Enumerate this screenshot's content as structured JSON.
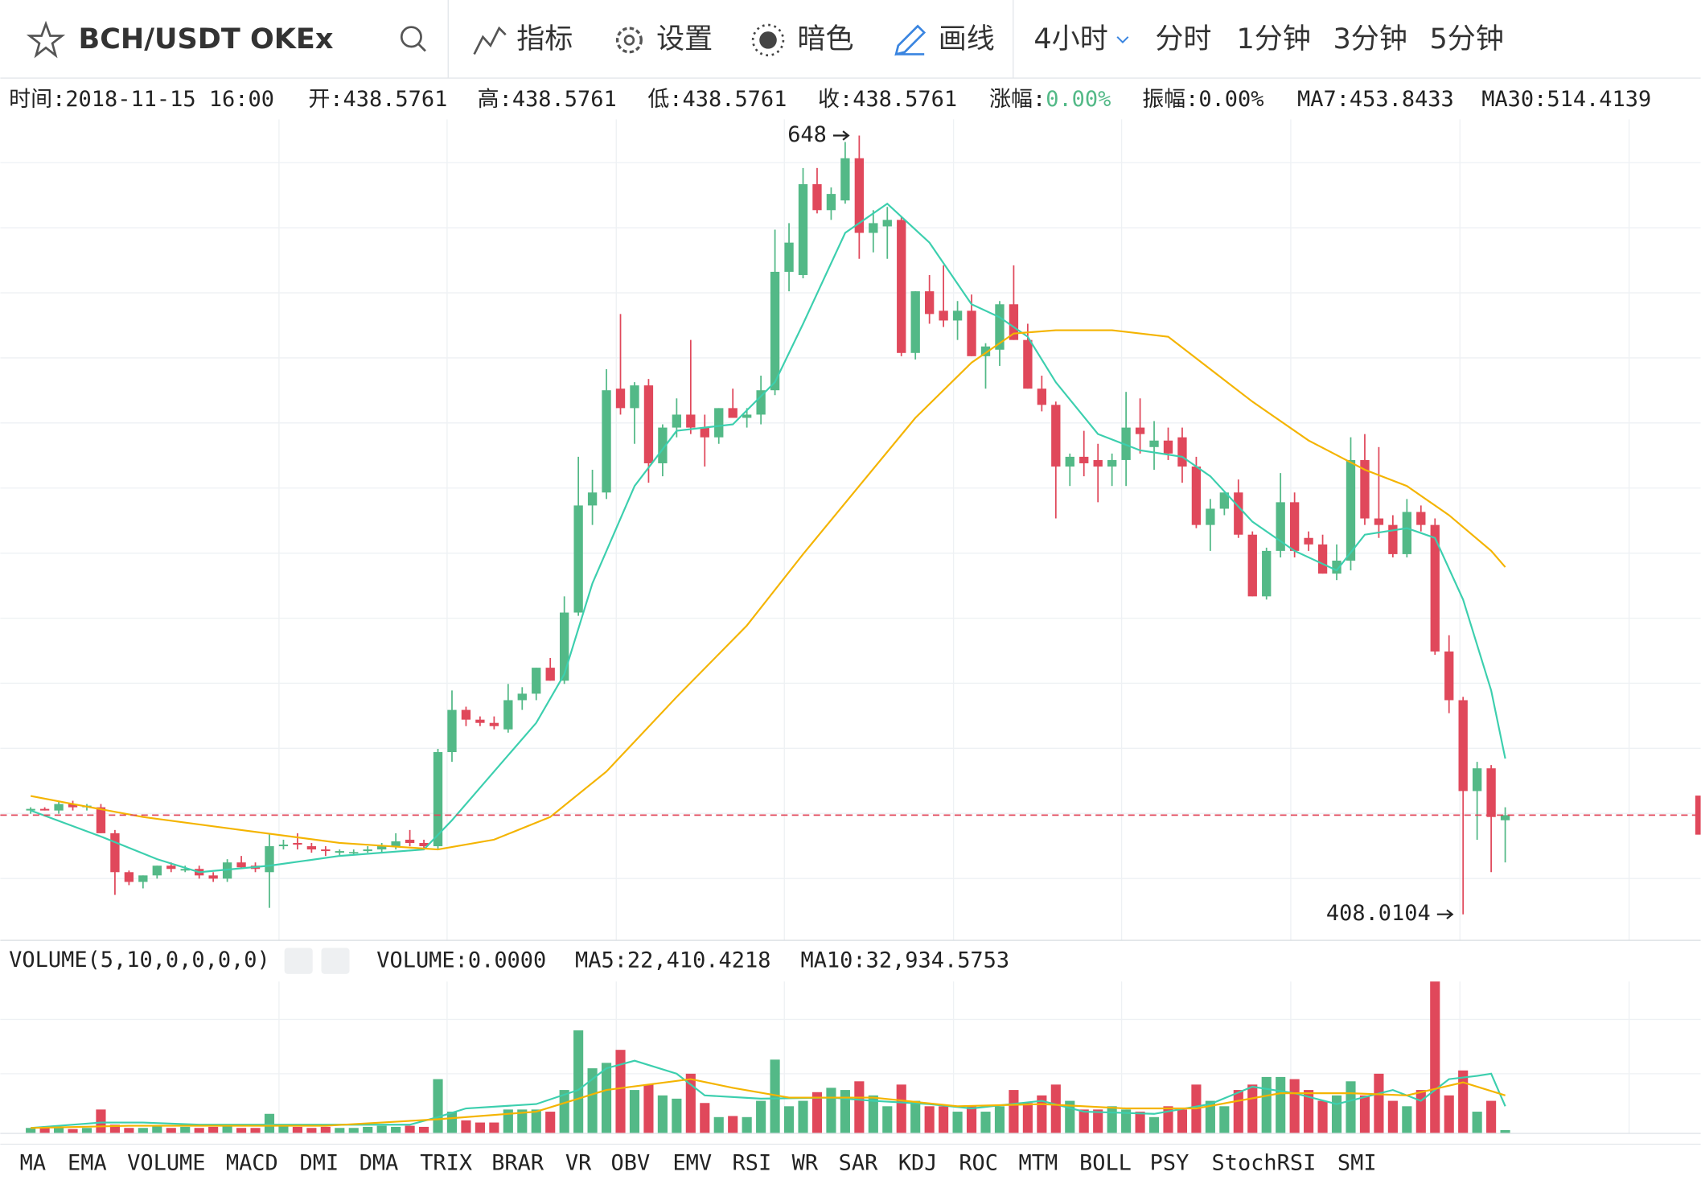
{
  "toolbar": {
    "symbol": "BCH/USDT OKEx",
    "buttons": [
      "指标",
      "设置",
      "暗色",
      "画线"
    ],
    "period": "4小时",
    "periods": [
      "分时",
      "1分钟",
      "3分钟",
      "5分钟"
    ]
  },
  "info": [
    {
      "label": "时间:",
      "value": "2018-11-15 16:00"
    },
    {
      "label": "开:",
      "value": 438.5761
    },
    {
      "label": "高:",
      "value": 438.5761
    },
    {
      "label": "低:",
      "value": 438.5761
    },
    {
      "label": "收:",
      "value": 438.5761
    },
    {
      "label": "涨幅:",
      "value": "0.00%",
      "value_color": "#53b987"
    },
    {
      "label": "振幅:",
      "value": "0.00%"
    },
    {
      "label": "MA7:",
      "value": 453.8433,
      "color": "#3ccfae"
    },
    {
      "label": "MA30:",
      "value": 514.4139,
      "color": "#f4b400"
    }
  ],
  "chart_data": [
    {
      "type": "candlestick",
      "up_color": "#53b987",
      "down_color": "#e0485b",
      "ylim": [
        400,
        653
      ],
      "ohlc": [
        [
          440,
          441,
          439,
          440.5
        ],
        [
          440.5,
          441,
          440,
          440
        ],
        [
          440,
          443,
          439,
          442
        ],
        [
          442,
          443,
          440,
          441
        ],
        [
          441,
          442,
          440,
          441.5
        ],
        [
          441,
          442,
          433,
          433
        ],
        [
          433,
          434,
          414,
          421
        ],
        [
          421,
          421.5,
          417,
          418
        ],
        [
          418,
          420,
          416,
          420
        ],
        [
          420,
          423,
          419,
          423
        ],
        [
          423,
          424,
          421,
          422
        ],
        [
          421.5,
          423,
          421,
          422
        ],
        [
          422,
          423,
          419,
          420
        ],
        [
          420,
          421,
          418,
          419
        ],
        [
          419,
          425,
          418,
          424
        ],
        [
          424,
          426,
          422,
          422.5
        ],
        [
          423,
          424,
          421,
          422
        ],
        [
          421,
          433,
          410,
          429
        ],
        [
          429,
          431,
          428,
          429.5
        ],
        [
          430,
          433,
          428,
          429.5
        ],
        [
          429,
          430,
          427,
          428
        ],
        [
          428,
          429,
          426,
          427.5
        ],
        [
          427,
          428,
          426,
          427.5
        ],
        [
          427,
          428,
          426.5,
          427.2
        ],
        [
          427.5,
          429,
          427,
          428
        ],
        [
          428,
          430,
          427,
          429
        ],
        [
          429,
          433,
          428,
          430.5
        ],
        [
          431,
          434,
          429,
          430
        ],
        [
          430,
          431,
          428,
          429
        ],
        [
          429,
          459,
          428,
          458
        ],
        [
          458,
          477,
          455,
          471
        ],
        [
          471,
          472,
          466,
          468
        ],
        [
          468,
          469,
          466,
          467
        ],
        [
          467,
          469,
          465,
          466
        ],
        [
          465,
          479,
          464,
          474
        ],
        [
          474,
          478,
          471,
          476
        ],
        [
          476,
          484,
          474,
          484
        ],
        [
          484,
          487,
          480,
          480
        ],
        [
          480,
          506,
          479,
          501
        ],
        [
          501,
          549,
          500,
          534
        ],
        [
          534,
          545,
          528,
          538
        ],
        [
          538,
          576,
          536,
          569.5
        ],
        [
          570,
          593,
          562,
          564
        ],
        [
          564,
          572,
          553,
          571
        ],
        [
          571,
          573,
          541,
          547
        ],
        [
          547,
          559,
          543,
          558
        ],
        [
          558,
          567,
          555,
          562
        ],
        [
          562,
          585,
          556,
          558
        ],
        [
          558,
          562,
          546,
          555
        ],
        [
          555,
          564,
          553,
          564
        ],
        [
          564,
          570,
          561,
          561
        ],
        [
          561,
          564,
          558,
          562
        ],
        [
          562,
          574,
          559,
          569.5
        ],
        [
          569.5,
          619,
          568,
          606
        ],
        [
          606,
          621,
          600,
          615
        ],
        [
          605,
          638,
          604,
          633
        ],
        [
          633,
          638,
          624,
          625
        ],
        [
          625,
          632,
          622,
          630
        ],
        [
          628,
          646,
          627,
          641
        ],
        [
          641,
          648,
          610,
          618
        ],
        [
          618,
          625,
          612,
          621
        ],
        [
          620,
          626,
          610,
          622
        ],
        [
          622,
          623,
          580,
          581
        ],
        [
          581,
          600,
          579,
          600
        ],
        [
          600,
          605,
          590,
          593
        ],
        [
          594,
          608,
          589,
          591
        ],
        [
          591,
          597,
          585,
          594
        ],
        [
          594,
          599,
          580,
          580
        ],
        [
          580,
          584,
          570,
          583
        ],
        [
          582,
          597,
          577,
          596
        ],
        [
          596,
          608,
          585,
          585
        ],
        [
          585,
          590,
          570,
          570
        ],
        [
          570,
          574,
          563,
          565
        ],
        [
          565,
          566,
          530,
          546
        ],
        [
          546,
          550,
          540,
          549
        ],
        [
          549,
          557,
          543,
          547
        ],
        [
          548,
          553,
          535,
          546
        ],
        [
          546,
          550,
          540,
          548
        ],
        [
          548,
          569,
          540,
          558
        ],
        [
          558,
          567,
          550,
          556
        ],
        [
          552,
          560,
          545,
          554
        ],
        [
          554,
          558,
          548,
          550
        ],
        [
          555,
          558,
          541,
          546
        ],
        [
          546,
          549,
          527,
          528
        ],
        [
          528,
          536,
          520,
          533
        ],
        [
          533,
          538,
          531,
          538
        ],
        [
          538,
          542,
          524,
          525
        ],
        [
          525,
          526,
          506,
          506
        ],
        [
          506,
          521,
          505,
          520
        ],
        [
          520,
          544,
          518,
          535
        ],
        [
          535,
          538,
          518,
          520
        ],
        [
          524,
          526,
          520,
          522
        ],
        [
          522,
          525,
          513,
          513
        ],
        [
          513,
          522,
          511,
          517
        ],
        [
          517,
          555,
          514,
          548
        ],
        [
          548,
          556,
          528,
          530
        ],
        [
          530,
          552,
          524,
          528
        ],
        [
          528,
          531,
          518,
          519
        ],
        [
          519,
          536,
          518,
          532
        ],
        [
          532,
          534,
          526,
          528
        ],
        [
          528,
          530,
          488,
          489
        ],
        [
          489,
          494,
          470,
          474
        ],
        [
          474,
          475,
          408.0104,
          446
        ],
        [
          446,
          455,
          431,
          453
        ],
        [
          453,
          454,
          421,
          438
        ],
        [
          437,
          441,
          424,
          438.5761
        ]
      ],
      "ma": [
        {
          "color": "#3ccfae",
          "x": [
            0,
            5,
            9,
            12,
            17,
            22,
            28,
            30,
            33,
            36,
            38,
            40,
            43,
            46,
            50,
            53,
            55,
            58,
            61,
            64,
            67,
            69,
            71,
            73,
            76,
            79,
            82,
            84,
            87,
            90,
            93,
            95,
            98,
            100,
            102,
            104,
            105
          ],
          "values": [
            440,
            432,
            425,
            421,
            423,
            426,
            428,
            437,
            452,
            467,
            482,
            510,
            540,
            557,
            559,
            572,
            590,
            618,
            627,
            615,
            596,
            592,
            586,
            572,
            556,
            551,
            549,
            543,
            529,
            520,
            514,
            525,
            527,
            524,
            505,
            477,
            456
          ]
        },
        {
          "color": "#f4b400",
          "x": [
            0,
            3,
            8,
            15,
            22,
            29,
            33,
            37,
            41,
            46,
            51,
            55,
            59,
            63,
            67,
            70,
            73,
            77,
            81,
            84,
            87,
            91,
            95,
            98,
            101,
            104,
            105
          ],
          "values": [
            444.5,
            442,
            438,
            434,
            430,
            428,
            431,
            438,
            452,
            475,
            497,
            519,
            540,
            561,
            578,
            587,
            588,
            588,
            586,
            576,
            566,
            554,
            545,
            540,
            531,
            520,
            515
          ]
        }
      ]
    },
    {
      "type": "bar",
      "ylim": [
        0,
        130500
      ],
      "values": [
        4500,
        4500,
        4500,
        3600,
        4500,
        19800,
        7200,
        4500,
        4500,
        6300,
        4500,
        5400,
        4500,
        5400,
        6300,
        4500,
        4500,
        16200,
        7200,
        5400,
        4500,
        5400,
        4500,
        4500,
        5400,
        6300,
        5400,
        6300,
        5400,
        45000,
        18000,
        10800,
        9000,
        9000,
        19800,
        19800,
        19800,
        18000,
        36000,
        85500,
        54000,
        58500,
        69300,
        36000,
        40500,
        31500,
        28800,
        49500,
        25200,
        13500,
        14400,
        13500,
        27000,
        61200,
        22500,
        27000,
        34200,
        37800,
        36000,
        43200,
        31500,
        22500,
        40500,
        27000,
        22500,
        22500,
        18000,
        22500,
        18000,
        22500,
        36000,
        25200,
        31500,
        40500,
        27000,
        19800,
        19800,
        22500,
        19800,
        18000,
        13500,
        22500,
        19800,
        40500,
        27000,
        22500,
        36000,
        40500,
        46800,
        46800,
        45000,
        36000,
        27000,
        31500,
        43200,
        31500,
        49500,
        27000,
        22500,
        36000,
        126000,
        31500,
        52200,
        18000,
        27000,
        2700
      ],
      "ma": [
        {
          "color": "#3ccfae",
          "x": [
            0,
            5,
            8,
            12,
            27,
            29,
            31,
            36,
            39,
            41,
            43,
            46,
            48,
            52,
            57,
            60,
            64,
            67,
            72,
            75,
            80,
            84,
            87,
            90,
            93,
            97,
            99,
            101,
            103,
            104,
            105
          ],
          "values": [
            4500,
            9000,
            9000,
            7200,
            7200,
            13500,
            20700,
            24300,
            36000,
            54000,
            60300,
            49500,
            31500,
            28800,
            29700,
            27000,
            24300,
            20700,
            27000,
            18000,
            16200,
            24300,
            38700,
            33300,
            24300,
            36000,
            27000,
            45000,
            47700,
            49500,
            22500
          ]
        },
        {
          "color": "#f4b400",
          "x": [
            0,
            7,
            21,
            29,
            36,
            41,
            47,
            50,
            54,
            60,
            66,
            72,
            78,
            83,
            89,
            94,
            98,
            102,
            105
          ],
          "values": [
            4500,
            6300,
            6300,
            11700,
            18000,
            36000,
            45000,
            37800,
            29700,
            29700,
            22500,
            24300,
            20700,
            20700,
            33300,
            33300,
            31500,
            42300,
            31500
          ]
        }
      ]
    }
  ],
  "volume_info": {
    "title": "VOLUME(5,10,0,0,0,0)",
    "items": [
      {
        "label": "VOLUME:",
        "value": "0.0000"
      },
      {
        "label": "MA5:",
        "value": "22,410.4218",
        "color": "#3ccfae"
      },
      {
        "label": "MA10:",
        "value": "32,934.5753",
        "color": "#f4b400"
      }
    ]
  },
  "tabs": [
    "MA",
    "EMA",
    "VOLUME",
    "MACD",
    "DMI",
    "DMA",
    "TRIX",
    "BRAR",
    "VR",
    "OBV",
    "EMV",
    "RSI",
    "WR",
    "SAR",
    "KDJ",
    "ROC",
    "MTM",
    "BOLL",
    "PSY",
    "StochRSI",
    "SMI"
  ],
  "active_tab": 2
}
